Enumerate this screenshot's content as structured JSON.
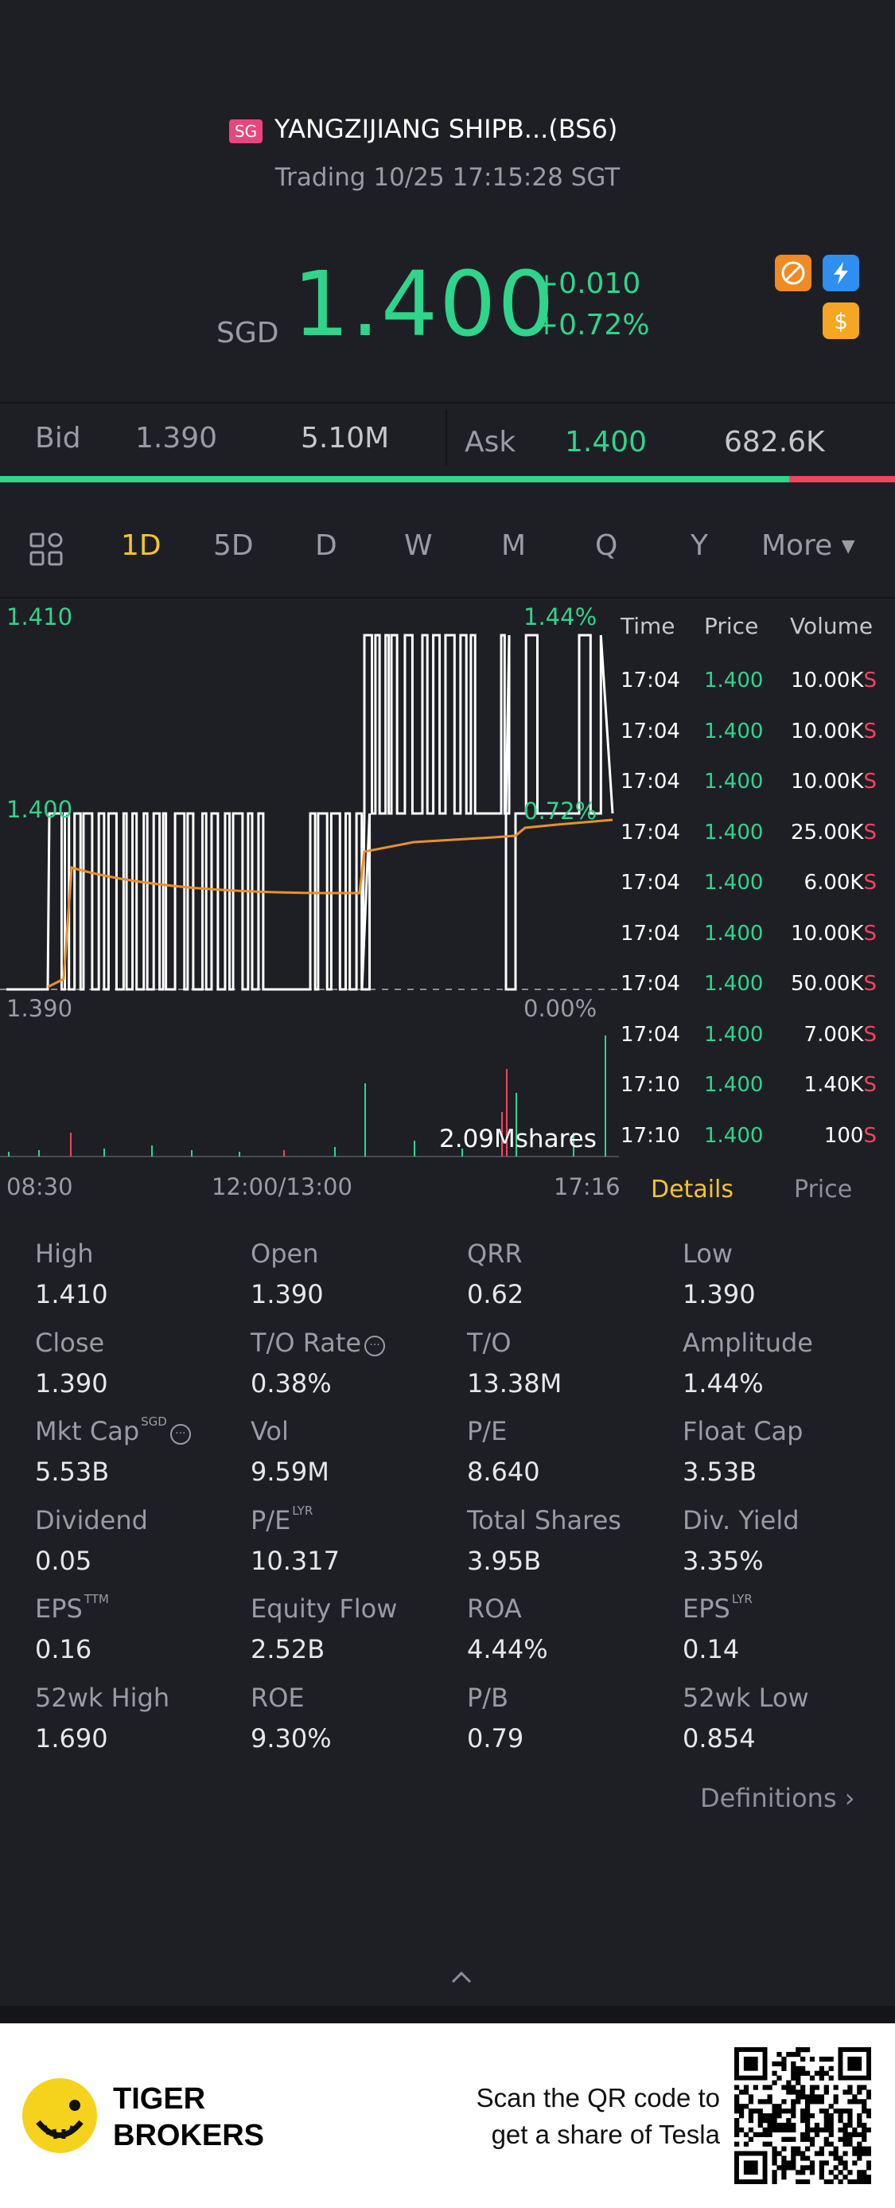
{
  "header": {
    "market_badge": "SG",
    "stock_name": "YANGZIJIANG SHIPB...(BS6)",
    "trade_status": "Trading 10/25 17:15:28 SGT",
    "currency": "SGD",
    "price": "1.400",
    "change": "+0.010",
    "change_pct": "+0.72%",
    "icons": [
      "no-short-icon",
      "flash-icon",
      "dollar-icon"
    ],
    "colors": {
      "up": "#2fd58a",
      "down": "#f0455f",
      "accent": "#f4c528"
    }
  },
  "bid_ask": {
    "bid_label": "Bid",
    "bid_price": "1.390",
    "bid_volume": "5.10M",
    "ask_label": "Ask",
    "ask_price": "1.400",
    "ask_volume": "682.6K",
    "bid_ratio": 0.882
  },
  "period_tabs": {
    "items": [
      "1D",
      "5D",
      "D",
      "W",
      "M",
      "Q",
      "Y"
    ],
    "more_label": "More",
    "active": "1D"
  },
  "chart_data": {
    "type": "line",
    "y_axis_left": [
      "1.410",
      "1.400",
      "1.390"
    ],
    "y_axis_right": [
      "1.44%",
      "0.72%",
      "0.00%"
    ],
    "ylim": [
      1.39,
      1.41
    ],
    "x_labels": [
      "08:30",
      "12:00/13:00",
      "17:16"
    ],
    "volume_label": "2.09Mshares",
    "series": [
      {
        "color": "#ffffff"
      },
      {
        "color": "#e8912a"
      }
    ]
  },
  "trades": {
    "headers": {
      "time": "Time",
      "price": "Price",
      "volume": "Volume"
    },
    "rows": [
      {
        "time": "17:04",
        "price": "1.400",
        "volume": "10.00K",
        "side": "S"
      },
      {
        "time": "17:04",
        "price": "1.400",
        "volume": "10.00K",
        "side": "S"
      },
      {
        "time": "17:04",
        "price": "1.400",
        "volume": "10.00K",
        "side": "S"
      },
      {
        "time": "17:04",
        "price": "1.400",
        "volume": "25.00K",
        "side": "S"
      },
      {
        "time": "17:04",
        "price": "1.400",
        "volume": "6.00K",
        "side": "S"
      },
      {
        "time": "17:04",
        "price": "1.400",
        "volume": "10.00K",
        "side": "S"
      },
      {
        "time": "17:04",
        "price": "1.400",
        "volume": "50.00K",
        "side": "S"
      },
      {
        "time": "17:04",
        "price": "1.400",
        "volume": "7.00K",
        "side": "S"
      },
      {
        "time": "17:10",
        "price": "1.400",
        "volume": "1.40K",
        "side": "S"
      },
      {
        "time": "17:10",
        "price": "1.400",
        "volume": "100",
        "side": "S"
      }
    ]
  },
  "sub_tabs": {
    "details": "Details",
    "price": "Price"
  },
  "stats": [
    {
      "label": "High",
      "value": "1.410"
    },
    {
      "label": "Open",
      "value": "1.390"
    },
    {
      "label": "QRR",
      "value": "0.62"
    },
    {
      "label": "Low",
      "value": "1.390"
    },
    {
      "label": "Close",
      "value": "1.390"
    },
    {
      "label": "T/O Rate",
      "value": "0.38%"
    },
    {
      "label": "T/O",
      "value": "13.38M"
    },
    {
      "label": "Amplitude",
      "value": "1.44%"
    },
    {
      "label": "Mkt Cap",
      "value": "5.53B",
      "sup": "SGD"
    },
    {
      "label": "Vol",
      "value": "9.59M"
    },
    {
      "label": "P/E",
      "value": "8.640"
    },
    {
      "label": "Float Cap",
      "value": "3.53B"
    },
    {
      "label": "Dividend",
      "value": "0.05"
    },
    {
      "label": "P/E",
      "value": "10.317",
      "sup": "LYR"
    },
    {
      "label": "Total Shares",
      "value": "3.95B"
    },
    {
      "label": "Div. Yield",
      "value": "3.35%"
    },
    {
      "label": "EPS",
      "value": "0.16",
      "sup": "TTM"
    },
    {
      "label": "Equity Flow",
      "value": "2.52B"
    },
    {
      "label": "ROA",
      "value": "4.44%"
    },
    {
      "label": "EPS",
      "value": "0.14",
      "sup": "LYR"
    },
    {
      "label": "52wk High",
      "value": "1.690"
    },
    {
      "label": "ROE",
      "value": "9.30%"
    },
    {
      "label": "P/B",
      "value": "0.79"
    },
    {
      "label": "52wk Low",
      "value": "0.854"
    }
  ],
  "definitions_label": "Definitions",
  "footer": {
    "brand_line1": "TIGER",
    "brand_line2": "BROKERS",
    "scan_line1": "Scan the QR code to",
    "scan_line2": "get a share of Tesla"
  }
}
